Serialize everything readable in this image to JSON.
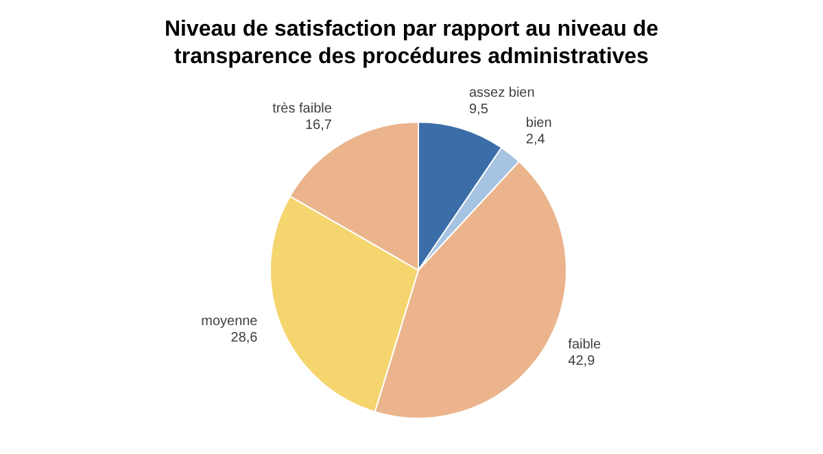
{
  "chart_data": {
    "type": "pie",
    "title": "Niveau de satisfaction par rapport au niveau de transparence des procédures administratives",
    "categories": [
      "assez bien",
      "bien",
      "faible",
      "moyenne",
      "très faible"
    ],
    "values": [
      9.5,
      2.4,
      42.9,
      28.6,
      16.7
    ],
    "value_labels": [
      "9,5",
      "2,4",
      "42,9",
      "28,6",
      "16,7"
    ],
    "colors": [
      "#3b6ea8",
      "#a6c3e2",
      "#ebb48c",
      "#f5d56e",
      "#ebb48c"
    ],
    "legend": false
  }
}
